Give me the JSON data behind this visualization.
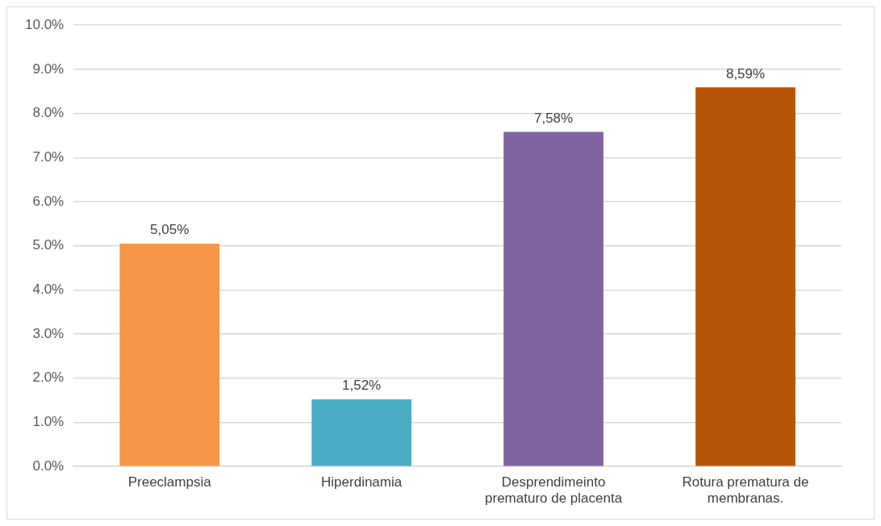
{
  "chart_data": {
    "type": "bar",
    "categories": [
      "Preeclampsia",
      "Hiperdinamia",
      "Desprendimeinto prematuro de placenta",
      "Rotura prematura de membranas."
    ],
    "values": [
      5.05,
      1.52,
      7.58,
      8.59
    ],
    "colors": [
      "#f79646",
      "#4bacc6",
      "#8064a2",
      "#b75506"
    ],
    "value_labels": [
      "5,05%",
      "1,52%",
      "7,58%",
      "8,59%"
    ],
    "ylim": [
      0,
      10
    ],
    "yticks": [
      {
        "value": 0,
        "label": "0.0%"
      },
      {
        "value": 1,
        "label": "1.0%"
      },
      {
        "value": 2,
        "label": "2.0%"
      },
      {
        "value": 3,
        "label": "3.0%"
      },
      {
        "value": 4,
        "label": "4.0%"
      },
      {
        "value": 5,
        "label": "5.0%"
      },
      {
        "value": 6,
        "label": "6.0%"
      },
      {
        "value": 7,
        "label": "7.0%"
      },
      {
        "value": 8,
        "label": "8.0%"
      },
      {
        "value": 9,
        "label": "9.0%"
      },
      {
        "value": 10,
        "label": "10.0%"
      }
    ],
    "grid": "y",
    "legend": false
  }
}
